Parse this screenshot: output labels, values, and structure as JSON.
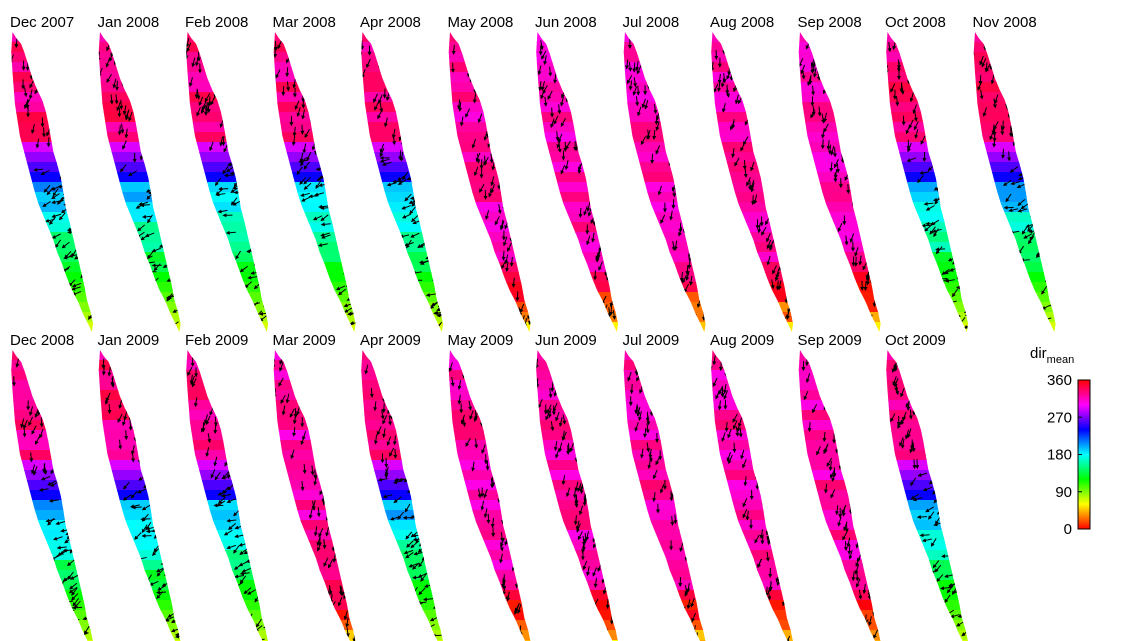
{
  "chart_data": {
    "type": "heatmap",
    "description_kind": "small-multiples vector field maps",
    "panels": [
      {
        "label": "Dec 2007",
        "regime": "mixed"
      },
      {
        "label": "Jan 2008",
        "regime": "mixed"
      },
      {
        "label": "Feb 2008",
        "regime": "mixed"
      },
      {
        "label": "Mar 2008",
        "regime": "mixed"
      },
      {
        "label": "Apr 2008",
        "regime": "mixed"
      },
      {
        "label": "May 2008",
        "regime": "north"
      },
      {
        "label": "Jun 2008",
        "regime": "north"
      },
      {
        "label": "Jul 2008",
        "regime": "north"
      },
      {
        "label": "Aug 2008",
        "regime": "north"
      },
      {
        "label": "Sep 2008",
        "regime": "north"
      },
      {
        "label": "Oct 2008",
        "regime": "mixed"
      },
      {
        "label": "Nov 2008",
        "regime": "mixed"
      },
      {
        "label": "Dec 2008",
        "regime": "mixed"
      },
      {
        "label": "Jan 2009",
        "regime": "mixed"
      },
      {
        "label": "Feb 2009",
        "regime": "mixed"
      },
      {
        "label": "Mar 2009",
        "regime": "north"
      },
      {
        "label": "Apr 2009",
        "regime": "mixed"
      },
      {
        "label": "May 2009",
        "regime": "north"
      },
      {
        "label": "Jun 2009",
        "regime": "north"
      },
      {
        "label": "Jul 2009",
        "regime": "north"
      },
      {
        "label": "Aug 2009",
        "regime": "north"
      },
      {
        "label": "Sep 2009",
        "regime": "north"
      },
      {
        "label": "Oct 2009",
        "regime": "mixed"
      }
    ],
    "colorbar": {
      "title": "dir",
      "subscript": "mean",
      "range": [
        0,
        360
      ],
      "ticks": [
        "360",
        "270",
        "180",
        "90",
        "0"
      ],
      "colormap": [
        "#ff0000",
        "#ffff00",
        "#00ff00",
        "#00ffff",
        "#0000ff",
        "#ff00ff",
        "#ff0000"
      ]
    },
    "layout": {
      "rows": 2,
      "columns": 12
    }
  }
}
